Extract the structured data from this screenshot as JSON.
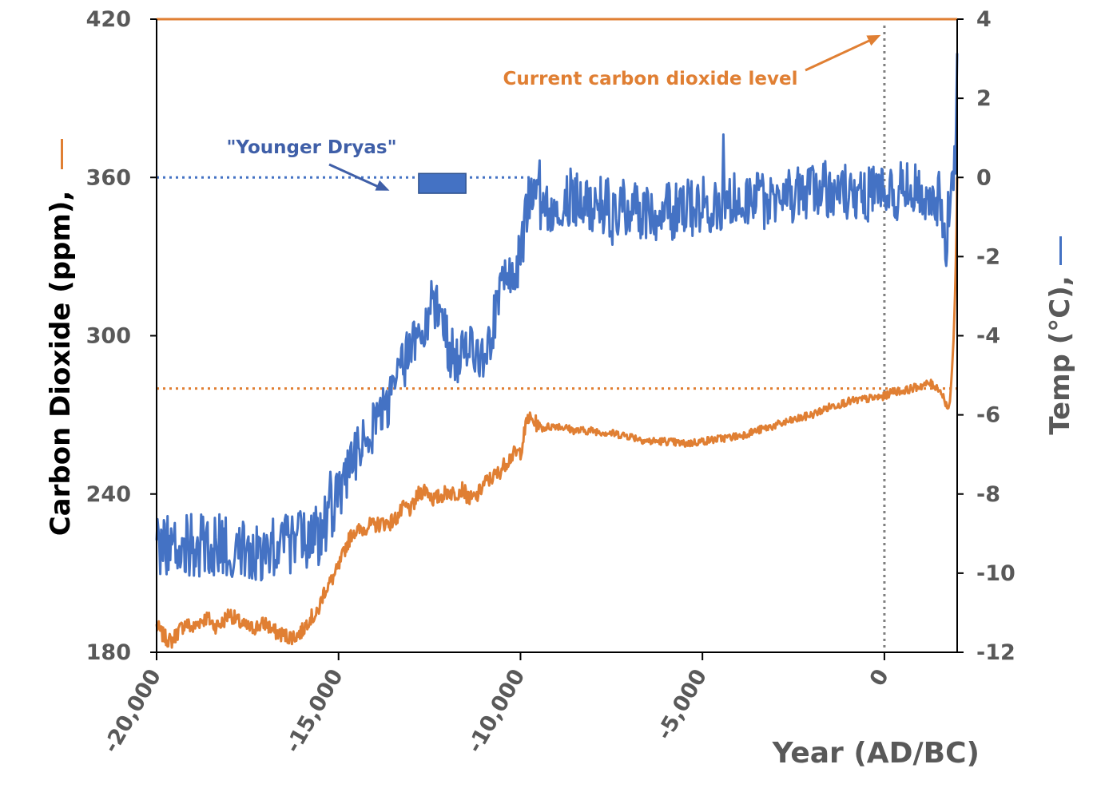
{
  "chart_data": {
    "type": "line",
    "xlabel": "Year (AD/BC)",
    "ylabel_left": "Carbon Dioxide (ppm),",
    "ylabel_right": "Temp (°C),",
    "xlim": [
      -20000,
      2000
    ],
    "ylim_left": [
      180,
      420
    ],
    "ylim_right": [
      -12,
      4
    ],
    "x_ticks": [
      -20000,
      -15000,
      -10000,
      -5000,
      0
    ],
    "x_tick_labels": [
      "-20,000",
      "-15,000",
      "-10,000",
      "-5,000",
      "0"
    ],
    "y_left_ticks": [
      180,
      240,
      300,
      360,
      420
    ],
    "y_left_tick_labels": [
      "180",
      "240",
      "300",
      "360",
      "420"
    ],
    "y_right_ticks": [
      -12,
      -10,
      -8,
      -6,
      -4,
      -2,
      0,
      2,
      4
    ],
    "y_right_tick_labels": [
      "-12",
      "-10",
      "-8",
      "-6",
      "-4",
      "-2",
      "0",
      "2",
      "4"
    ],
    "grid": false,
    "colors": {
      "co2": "#E07F33",
      "temp": "#4472C4",
      "axis": "#000000",
      "zero_line": "#7F7F7F"
    },
    "series": [
      {
        "axis": "left",
        "color": "#E07F33",
        "x": [
          -20000,
          -19800,
          -19600,
          -19400,
          -19200,
          -19000,
          -18800,
          -18600,
          -18400,
          -18200,
          -18000,
          -17800,
          -17600,
          -17400,
          -17200,
          -17000,
          -16800,
          -16600,
          -16400,
          -16200,
          -16000,
          -15800,
          -15600,
          -15400,
          -15200,
          -15000,
          -14800,
          -14600,
          -14400,
          -14200,
          -14000,
          -13800,
          -13600,
          -13400,
          -13200,
          -13000,
          -12800,
          -12600,
          -12400,
          -12200,
          -12000,
          -11800,
          -11600,
          -11400,
          -11200,
          -11000,
          -10800,
          -10600,
          -10400,
          -10200,
          -10000,
          -9800,
          -9600,
          -9400,
          -9000,
          -8500,
          -8000,
          -7500,
          -7000,
          -6500,
          -6000,
          -5500,
          -5000,
          -4500,
          -4000,
          -3500,
          -3000,
          -2500,
          -2000,
          -1500,
          -1000,
          -500,
          0,
          250,
          500,
          750,
          1000,
          1250,
          1500,
          1650,
          1750,
          1800,
          1850,
          1900,
          1950,
          1980,
          2000
        ],
        "values": [
          190,
          186,
          184,
          188,
          191,
          189,
          192,
          193,
          190,
          191,
          195,
          192,
          190,
          189,
          190,
          191,
          188,
          187,
          186,
          186,
          188,
          193,
          194,
          203,
          207,
          212,
          220,
          226,
          226,
          228,
          228,
          229,
          229,
          231,
          235,
          234,
          240,
          242,
          238,
          239,
          241,
          240,
          242,
          238,
          239,
          244,
          246,
          248,
          252,
          255,
          256,
          269,
          267,
          265,
          266,
          264,
          264,
          263,
          262,
          260,
          260,
          259,
          260,
          261,
          262,
          264,
          266,
          268,
          270,
          273,
          275,
          276,
          277,
          279,
          279,
          280,
          281,
          282,
          280,
          276,
          272,
          275,
          285,
          298,
          320,
          340,
          360
        ]
      },
      {
        "axis": "right",
        "color": "#4472C4",
        "x": [
          -20000,
          -19000,
          -18000,
          -17000,
          -16000,
          -15500,
          -15000,
          -14500,
          -14000,
          -13500,
          -13000,
          -12800,
          -12600,
          -12400,
          -12200,
          -12000,
          -11800,
          -11600,
          -11400,
          -11200,
          -11000,
          -10800,
          -10600,
          -10400,
          -10200,
          -10000,
          -9800,
          -9000,
          -8500,
          -8000,
          -7000,
          -6000,
          -5000,
          -4000,
          -3000,
          -2000,
          -1000,
          0,
          500,
          1000,
          1500,
          1700,
          1800,
          1850,
          1900,
          1950,
          2000
        ],
        "values": [
          -9.3,
          -9.3,
          -9.3,
          -9.4,
          -9.2,
          -9.0,
          -8.0,
          -7.0,
          -6.2,
          -5.5,
          -4.2,
          -4.1,
          -3.6,
          -3.0,
          -3.3,
          -4.2,
          -4.8,
          -4.5,
          -4.4,
          -4.4,
          -4.7,
          -4.0,
          -3.0,
          -2.6,
          -2.4,
          -2.0,
          -0.7,
          -0.6,
          -0.5,
          -0.7,
          -0.8,
          -0.9,
          -0.7,
          -0.5,
          -0.4,
          -0.3,
          -0.4,
          -0.4,
          -0.3,
          -0.4,
          -0.5,
          -1.5,
          -0.5,
          -0.3,
          -0.1,
          0.4,
          2.8
        ]
      }
    ],
    "reference_lines": [
      {
        "axis": "left",
        "value": 420,
        "style": "solid",
        "color": "#E07F33"
      },
      {
        "axis": "left",
        "value": 280,
        "style": "dotted",
        "color": "#E07F33"
      },
      {
        "axis": "right",
        "value": 0,
        "style": "dotted",
        "color": "#4472C4",
        "x_end": -9800
      },
      {
        "orientation": "vertical",
        "x": 0,
        "style": "dotted",
        "color": "#7F7F7F"
      }
    ],
    "annotations": [
      {
        "text": "Current carbon dioxide level",
        "color": "#E07F33",
        "arrow_to": {
          "x": -100,
          "y": 414,
          "axis": "left"
        }
      },
      {
        "text": "\"Younger Dryas\"",
        "color": "#3F5FA8",
        "arrow_to": {
          "x": -13600,
          "y": 355,
          "axis": "left"
        },
        "box": {
          "x0": -12800,
          "x1": -11500,
          "y_top": 0.1,
          "y_bottom": -0.4,
          "axis": "right"
        }
      }
    ]
  }
}
